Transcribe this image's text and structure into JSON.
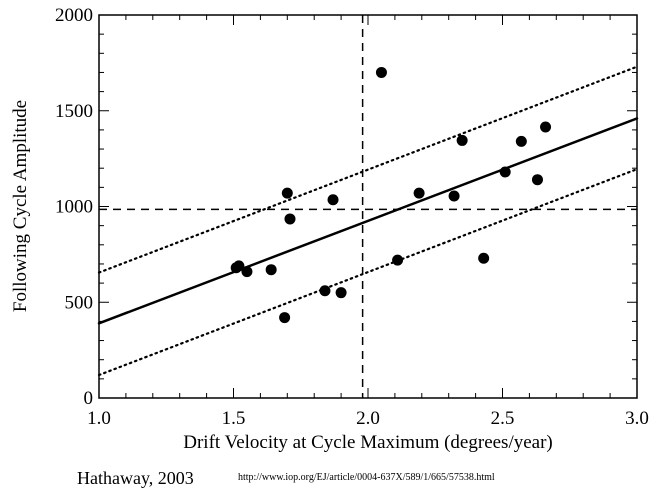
{
  "chart_data": {
    "type": "scatter",
    "xlabel": "Drift Velocity at Cycle Maximum (degrees/year)",
    "ylabel": "Following Cycle Amplitude",
    "xlim": [
      1.0,
      3.0
    ],
    "ylim": [
      0,
      2000
    ],
    "x_ticks": [
      "1.0",
      "1.5",
      "2.0",
      "2.5",
      "3.0"
    ],
    "y_ticks": [
      "0",
      "500",
      "1000",
      "1500",
      "2000"
    ],
    "grid": false,
    "points": [
      {
        "x": 1.51,
        "y": 680
      },
      {
        "x": 1.52,
        "y": 690
      },
      {
        "x": 1.55,
        "y": 660
      },
      {
        "x": 1.64,
        "y": 670
      },
      {
        "x": 1.69,
        "y": 420
      },
      {
        "x": 1.7,
        "y": 1070
      },
      {
        "x": 1.71,
        "y": 935
      },
      {
        "x": 1.84,
        "y": 560
      },
      {
        "x": 1.87,
        "y": 1035
      },
      {
        "x": 1.9,
        "y": 550
      },
      {
        "x": 2.05,
        "y": 1700
      },
      {
        "x": 2.11,
        "y": 720
      },
      {
        "x": 2.19,
        "y": 1070
      },
      {
        "x": 2.32,
        "y": 1055
      },
      {
        "x": 2.35,
        "y": 1345
      },
      {
        "x": 2.43,
        "y": 730
      },
      {
        "x": 2.51,
        "y": 1180
      },
      {
        "x": 2.57,
        "y": 1340
      },
      {
        "x": 2.63,
        "y": 1140
      },
      {
        "x": 2.66,
        "y": 1415
      }
    ],
    "fit_line": {
      "x": [
        1.0,
        3.0
      ],
      "y": [
        390,
        1460
      ],
      "style": "solid"
    },
    "upper_band": {
      "x": [
        1.0,
        3.0
      ],
      "y": [
        655,
        1730
      ],
      "style": "dotted"
    },
    "lower_band": {
      "x": [
        1.0,
        3.0
      ],
      "y": [
        120,
        1195
      ],
      "style": "dotted"
    },
    "vertical_ref": {
      "x": 1.98,
      "style": "dashed"
    },
    "horizontal_ref": {
      "y": 985,
      "style": "dashed"
    }
  },
  "credit": "Hathaway, 2003",
  "url": "http://www.iop.org/EJ/article/0004-637X/589/1/665/57538.html"
}
